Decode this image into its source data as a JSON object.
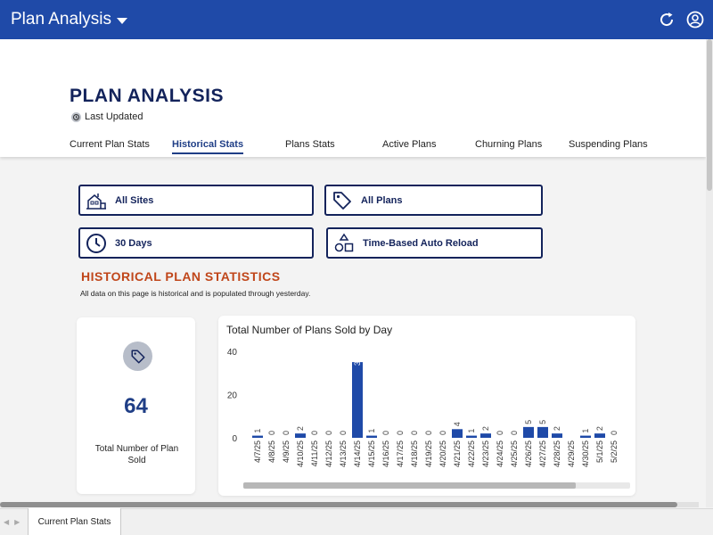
{
  "app": {
    "title": "Plan Analysis"
  },
  "page": {
    "title": "PLAN ANALYSIS",
    "last_updated_label": "Last Updated"
  },
  "tabs": [
    {
      "label": "Current Plan Stats"
    },
    {
      "label": "Historical Stats"
    },
    {
      "label": "Plans Stats"
    },
    {
      "label": "Active Plans"
    },
    {
      "label": "Churning Plans"
    },
    {
      "label": "Suspending Plans"
    }
  ],
  "active_tab": "Historical Stats",
  "filters": {
    "sites": {
      "label": "All Sites",
      "icon": "house-icon"
    },
    "plans": {
      "label": "All Plans",
      "icon": "tag-icon"
    },
    "period": {
      "label": "30 Days",
      "icon": "clock-icon"
    },
    "type": {
      "label": "Time-Based Auto Reload",
      "icon": "shapes-icon"
    }
  },
  "section": {
    "title": "HISTORICAL PLAN STATISTICS",
    "description": "All data on this page is historical and is populated through yesterday."
  },
  "stat_card": {
    "value": "64",
    "label": "Total Number of Plan Sold",
    "icon": "tag-icon"
  },
  "chart_data": {
    "type": "bar",
    "title": "Total Number of Plans Sold by Day",
    "xlabel": "",
    "ylabel": "",
    "ylim": [
      0,
      40
    ],
    "yticks": [
      0,
      20,
      40
    ],
    "grid": false,
    "categories": [
      "4/7/25",
      "4/8/25",
      "4/9/25",
      "4/10/25",
      "4/11/25",
      "4/12/25",
      "4/13/25",
      "4/14/25",
      "4/15/25",
      "4/16/25",
      "4/17/25",
      "4/18/25",
      "4/19/25",
      "4/20/25",
      "4/21/25",
      "4/22/25",
      "4/23/25",
      "4/24/25",
      "4/25/25",
      "4/26/25",
      "4/27/25",
      "4/28/25",
      "4/29/25",
      "4/30/25",
      "5/1/25",
      "5/2/25"
    ],
    "values": [
      1,
      0,
      0,
      2,
      0,
      0,
      0,
      35,
      1,
      0,
      0,
      0,
      0,
      0,
      4,
      1,
      2,
      0,
      0,
      5,
      5,
      2,
      0,
      1,
      2,
      0
    ],
    "value_labels": [
      "1",
      "0",
      "0",
      "2",
      "0",
      "0",
      "0",
      "35",
      "1",
      "0",
      "0",
      "0",
      "0",
      "0",
      "4",
      "1",
      "2",
      "0",
      "0",
      "5",
      "5",
      "2",
      "",
      "1",
      "2",
      "0"
    ],
    "bar_color": "#1f4aa8"
  },
  "colors": {
    "header": "#1f4aa8",
    "title": "#13235b",
    "accent": "#c0461a"
  },
  "bottom": {
    "sheet_tab": "Current Plan Stats"
  }
}
